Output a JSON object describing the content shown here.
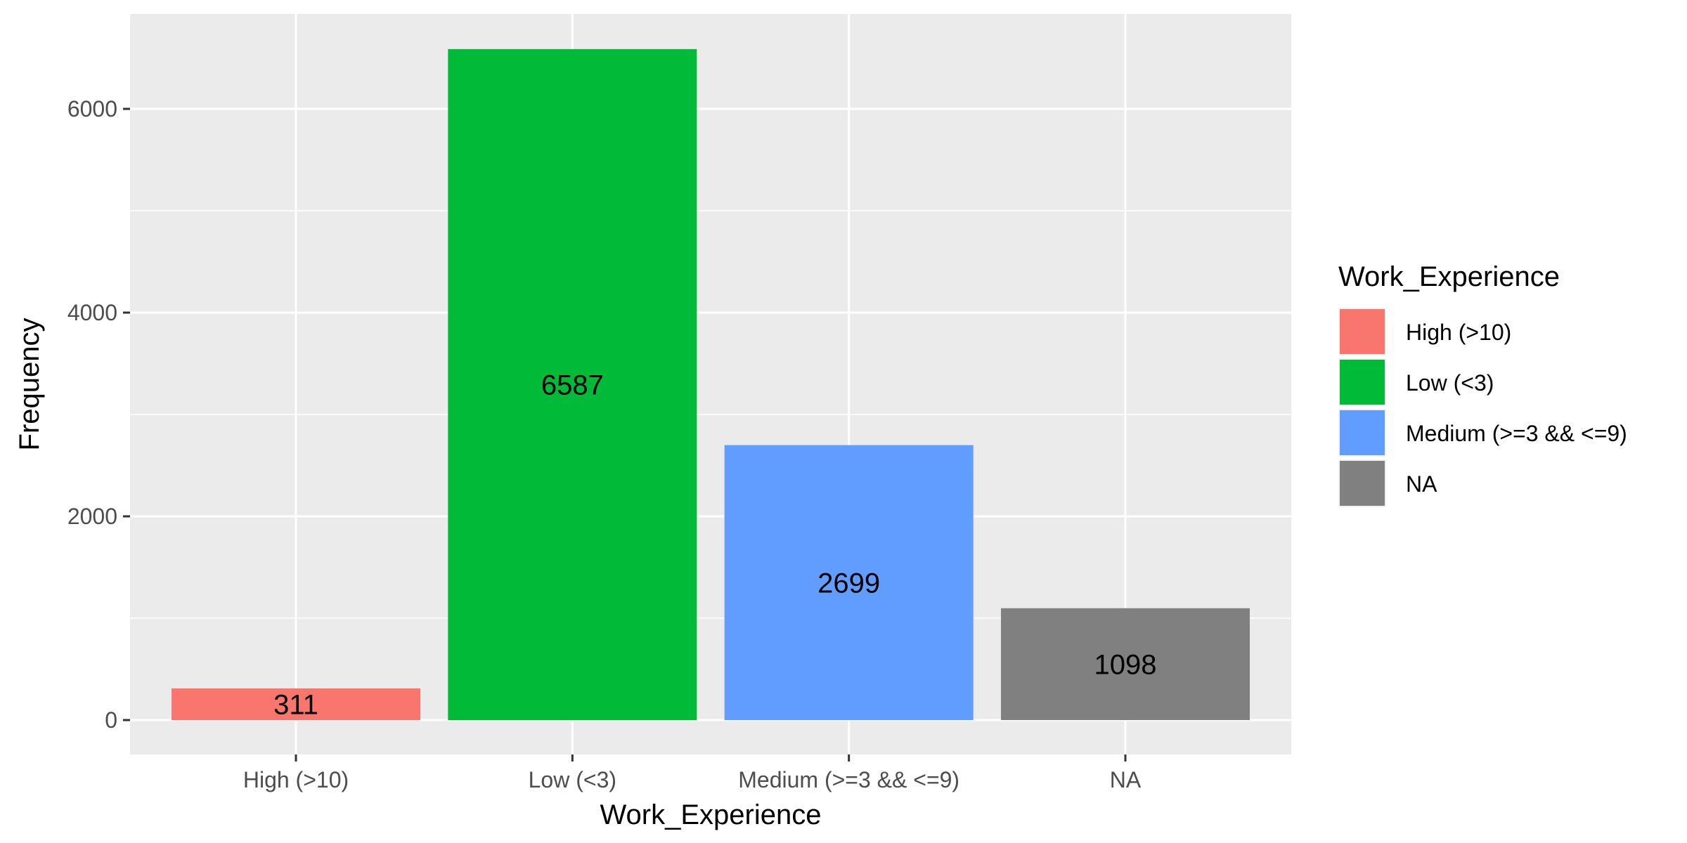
{
  "chart_data": {
    "type": "bar",
    "title": "",
    "xlabel": "Work_Experience",
    "ylabel": "Frequency",
    "categories": [
      "High (>10)",
      "Low (<3)",
      "Medium (>=3 && <=9)",
      "NA"
    ],
    "values": [
      311,
      6587,
      2699,
      1098
    ],
    "data_labels": [
      "311",
      "6587",
      "2699",
      "1098"
    ],
    "colors": [
      "#F8766D",
      "#00BA38",
      "#619CFF",
      "#808080"
    ],
    "ylim": [
      0,
      6900
    ],
    "yticks": [
      0,
      2000,
      4000,
      6000
    ],
    "ytick_labels": [
      "0",
      "2000",
      "4000",
      "6000"
    ],
    "grid": true,
    "panel_background": "#EBEBEB",
    "legend": {
      "title": "Work_Experience",
      "position": "right",
      "items": [
        "High (>10)",
        "Low (<3)",
        "Medium (>=3 && <=9)",
        "NA"
      ]
    }
  }
}
